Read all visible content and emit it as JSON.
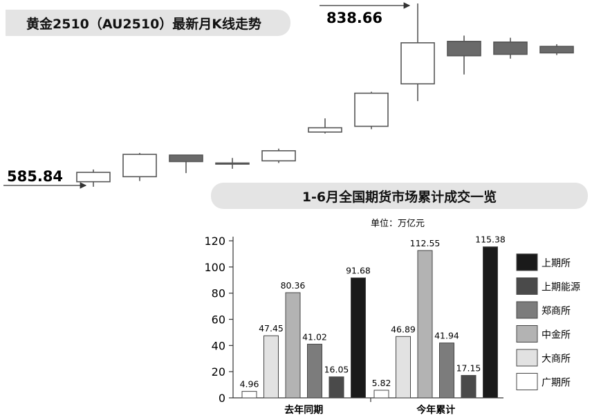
{
  "kline": {
    "title": "黄金2510（AU2510）最新月K线走势",
    "high_label": "838.66",
    "low_label": "585.84",
    "candles": [
      {
        "open": 591,
        "close": 604,
        "high": 608,
        "low": 584
      },
      {
        "open": 598,
        "close": 629,
        "high": 631,
        "low": 592
      },
      {
        "open": 628,
        "close": 619,
        "high": 628,
        "low": 603
      },
      {
        "open": 617,
        "close": 616,
        "high": 624,
        "low": 609
      },
      {
        "open": 620,
        "close": 634,
        "high": 637,
        "low": 617
      },
      {
        "open": 660,
        "close": 666,
        "high": 679,
        "low": 658
      },
      {
        "open": 668,
        "close": 714,
        "high": 716,
        "low": 664
      },
      {
        "open": 727,
        "close": 784,
        "high": 838.66,
        "low": 703
      },
      {
        "open": 786,
        "close": 766,
        "high": 794,
        "low": 740
      },
      {
        "open": 785,
        "close": 768,
        "high": 791,
        "low": 762
      },
      {
        "open": 779,
        "close": 770,
        "high": 782,
        "low": 767
      }
    ],
    "colors": {
      "up": "#ffffff",
      "down": "#6a6a6a",
      "line": "#555555"
    }
  },
  "chart_data": {
    "type": "bar",
    "title": "1-6月全国期货市场累计成交一览",
    "subtitle": "单位：万亿元",
    "categories": [
      "去年同期",
      "今年累计"
    ],
    "ylim": [
      0,
      120
    ],
    "yticks": [
      0,
      20,
      40,
      60,
      80,
      100,
      120
    ],
    "series": [
      {
        "name": "广期所",
        "values": [
          4.96,
          5.82
        ],
        "color": "#ffffff"
      },
      {
        "name": "大商所",
        "values": [
          47.45,
          46.89
        ],
        "color": "#e2e2e2"
      },
      {
        "name": "中金所",
        "values": [
          80.36,
          112.55
        ],
        "color": "#b3b3b3"
      },
      {
        "name": "郑商所",
        "values": [
          41.02,
          41.94
        ],
        "color": "#7c7c7c"
      },
      {
        "name": "上期能源",
        "values": [
          16.05,
          17.15
        ],
        "color": "#4a4a4a"
      },
      {
        "name": "上期所",
        "values": [
          91.68,
          115.38
        ],
        "color": "#1a1a1a"
      }
    ],
    "legend_order": [
      "上期所",
      "上期能源",
      "郑商所",
      "中金所",
      "大商所",
      "广期所"
    ],
    "legend_position": "right"
  }
}
